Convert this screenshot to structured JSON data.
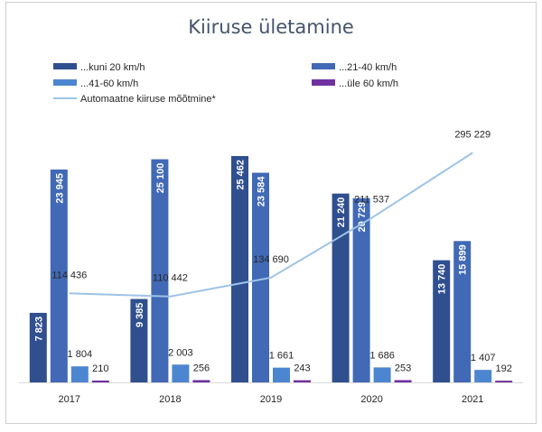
{
  "chart_data": {
    "type": "bar",
    "title": "Kiiruse ületamine",
    "categories": [
      "2017",
      "2018",
      "2019",
      "2020",
      "2021"
    ],
    "series": [
      {
        "name": "...kuni 20 km/h",
        "values": [
          7823,
          9385,
          25462,
          21240,
          13740
        ],
        "labels": [
          "7 823",
          "9 385",
          "25 462",
          "21 240",
          "13 740"
        ],
        "color": "#2f4f8f"
      },
      {
        "name": "...21-40 km/h",
        "values": [
          23945,
          25100,
          23584,
          20729,
          15899
        ],
        "labels": [
          "23 945",
          "25 100",
          "23 584",
          "20 729",
          "15 899"
        ],
        "color": "#4169b5"
      },
      {
        "name": "...41-60 km/h",
        "values": [
          1804,
          2003,
          1661,
          1686,
          1407
        ],
        "labels": [
          "1 804",
          "2 003",
          "1 661",
          "1 686",
          "1 407"
        ],
        "color": "#4c86d0"
      },
      {
        "name": "...üle 60 km/h",
        "values": [
          210,
          256,
          243,
          253,
          192
        ],
        "labels": [
          "210",
          "256",
          "243",
          "253",
          "192"
        ],
        "color": "#7030a0"
      }
    ],
    "line_series": {
      "name": "Automaatne kiiruse mõõtmine*",
      "values": [
        114436,
        110442,
        134690,
        211537,
        295229
      ],
      "labels": [
        "114 436",
        "110 442",
        "134 690",
        "211 537",
        "295 229"
      ],
      "color": "#9dc3e6"
    },
    "bar_ylim": [
      0,
      28000
    ],
    "line_ylim": [
      0,
      320000
    ],
    "legend_position": "top",
    "grid": false
  }
}
